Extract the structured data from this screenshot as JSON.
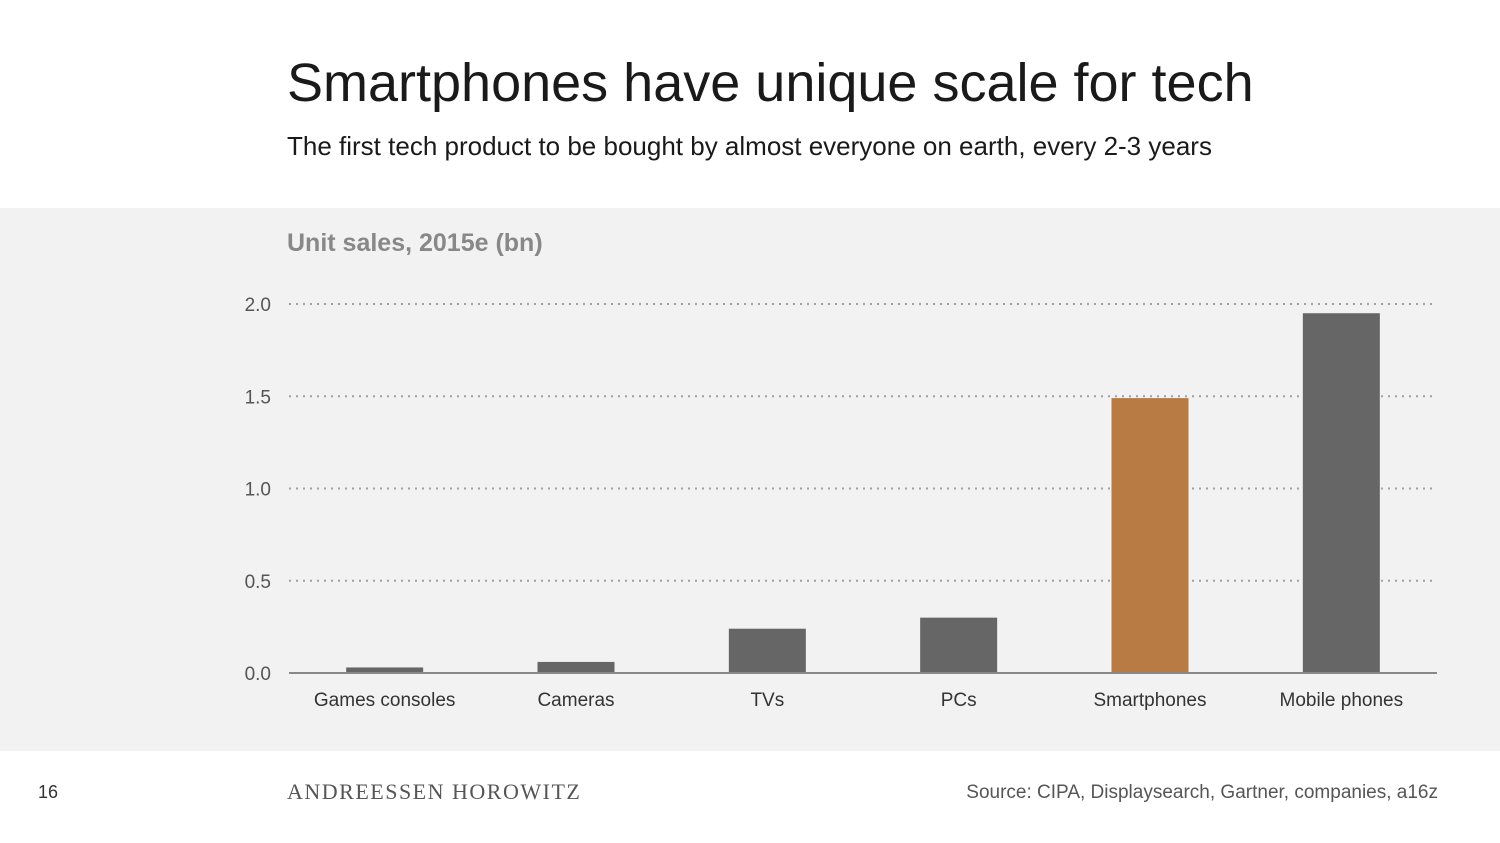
{
  "slide": {
    "title": "Smartphones have unique scale for tech",
    "subtitle": "The first tech product to be bought by almost everyone on earth, every 2-3 years",
    "page_number": "16",
    "brand": "ANDREESSEN HOROWITZ",
    "source": "Source: CIPA, Displaysearch, Gartner, companies, a16z"
  },
  "colors": {
    "panel_bg": "#f2f2f2",
    "bar_default": "#666666",
    "bar_highlight": "#b87b43",
    "grid": "#a0a0a0",
    "axis": "#888888",
    "tick_label": "#555555",
    "chart_title": "#888888"
  },
  "chart_data": {
    "type": "bar",
    "title": "Unit sales, 2015e (bn)",
    "xlabel": "",
    "ylabel": "",
    "categories": [
      "Games consoles",
      "Cameras",
      "TVs",
      "PCs",
      "Smartphones",
      "Mobile phones"
    ],
    "values": [
      0.03,
      0.06,
      0.24,
      0.3,
      1.49,
      1.95
    ],
    "highlight": [
      "Smartphones"
    ],
    "ylim": [
      0,
      2.0
    ],
    "yticks": [
      0.0,
      0.5,
      1.0,
      1.5,
      2.0
    ],
    "ytick_labels": [
      "0.0",
      "0.5",
      "1.0",
      "1.5",
      "2.0"
    ],
    "grid": true,
    "grid_style": "dotted"
  }
}
